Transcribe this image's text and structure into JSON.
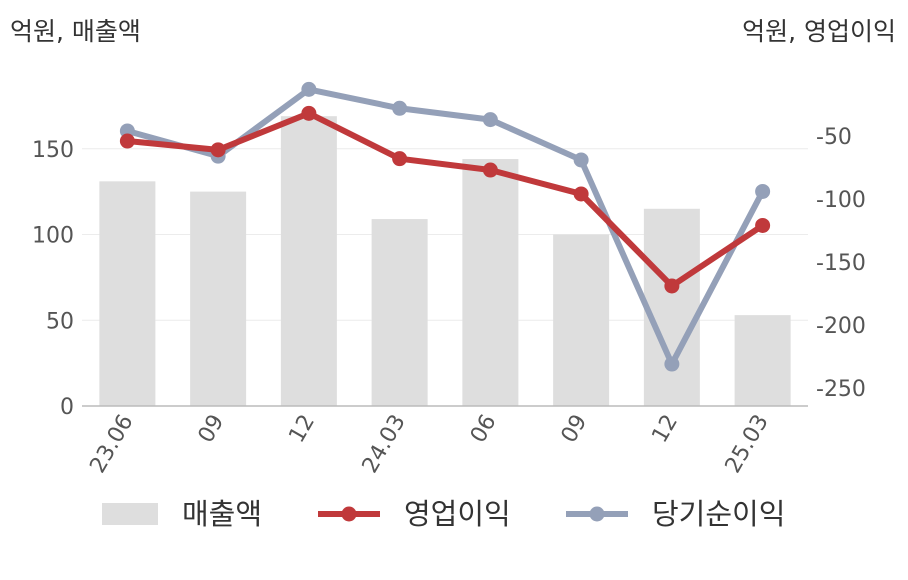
{
  "chart_data": {
    "type": "bar",
    "y_unit_left": "억원, 매출액",
    "y_unit_right": "억원, 영업이익",
    "categories": [
      "23.06",
      "09",
      "12",
      "24.03",
      "06",
      "09",
      "12",
      "25.03"
    ],
    "series": [
      {
        "name": "매출액",
        "type": "bar",
        "axis": "left",
        "values": [
          131,
          125,
          169,
          109,
          144,
          100,
          115,
          53
        ]
      },
      {
        "name": "영업이익",
        "type": "line",
        "axis": "right",
        "values": [
          -54,
          -61,
          -32,
          -68,
          -77,
          -96,
          -169,
          -121
        ]
      },
      {
        "name": "당기순이익",
        "type": "line",
        "axis": "right",
        "values": [
          -46,
          -66,
          -13,
          -28,
          -37,
          -69,
          -231,
          -94
        ]
      }
    ],
    "left_axis": {
      "ticks": [
        "0",
        "50",
        "100",
        "150"
      ],
      "tick_values": [
        0,
        50,
        100,
        150
      ],
      "ylim": [
        0,
        200
      ]
    },
    "right_axis": {
      "ticks": [
        "-50",
        "-100",
        "-150",
        "-200",
        "-250"
      ],
      "tick_values": [
        -50,
        -100,
        -150,
        -200,
        -250
      ],
      "ylim": [
        -265,
        -5
      ]
    },
    "grid": true,
    "legend_position": "bottom",
    "colors": {
      "bar": "#dedede",
      "operating": "#c0393b",
      "net": "#94a0b8",
      "axis": "#bbbbbb",
      "grid": "#ececec"
    }
  }
}
